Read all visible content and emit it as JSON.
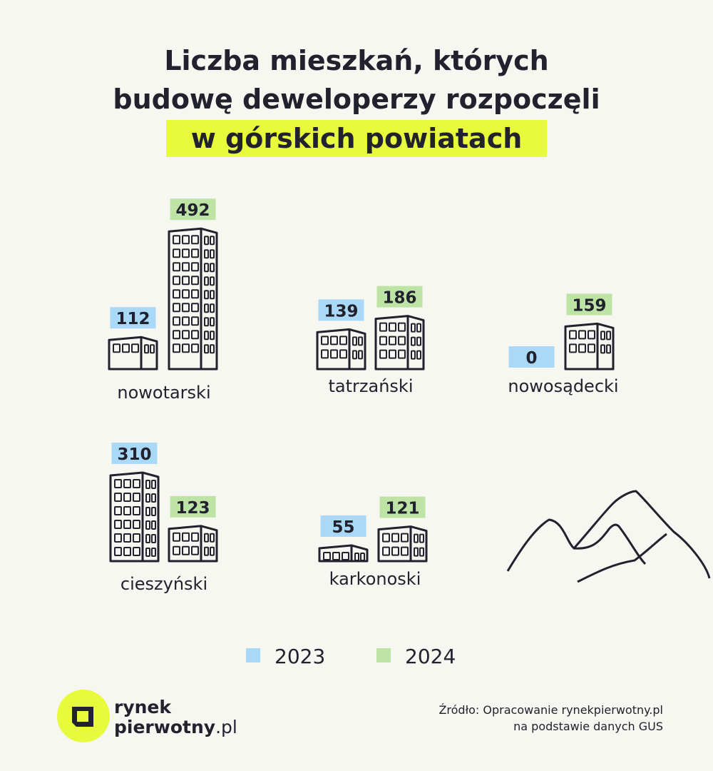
{
  "chart_data": {
    "type": "pictorial-bar",
    "title_lines": [
      "Liczba mieszkań, których",
      "budowę deweloperzy rozpoczęli"
    ],
    "title_highlight": "w górskich powiatach",
    "categories": [
      "nowotarski",
      "tatrzański",
      "nowosądecki",
      "cieszyński",
      "karkonoski"
    ],
    "series": [
      {
        "name": "2023",
        "color": "#a9d9f6",
        "values": [
          112,
          139,
          0,
          310,
          55
        ]
      },
      {
        "name": "2024",
        "color": "#bde3a5",
        "values": [
          492,
          186,
          159,
          123,
          121
        ]
      }
    ]
  },
  "source": [
    "Źródło: Opracowanie rynekpierwotny.pl",
    "na podstawie danych GUS"
  ],
  "logo": {
    "line1": "rynek",
    "line2": "pierwotny",
    "suffix": ".pl"
  }
}
